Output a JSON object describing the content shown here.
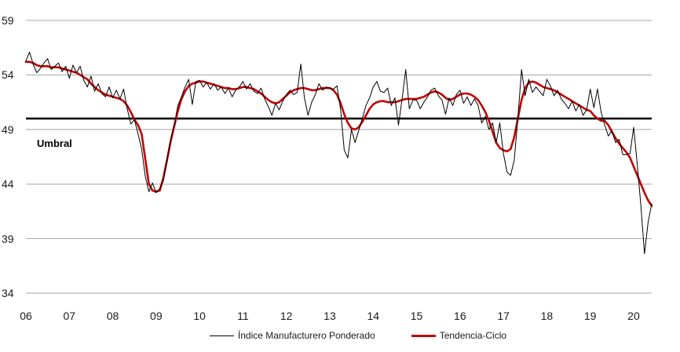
{
  "chart_data": {
    "type": "line",
    "title": "",
    "frequency": "monthly",
    "start": "2006-01",
    "end": "2020-06",
    "x_tick_labels": [
      "06",
      "07",
      "08",
      "09",
      "10",
      "11",
      "12",
      "13",
      "14",
      "15",
      "16",
      "17",
      "18",
      "19",
      "20"
    ],
    "y_ticks": [
      34,
      39,
      44,
      49,
      54,
      59
    ],
    "ylim": [
      34,
      59
    ],
    "grid": "horizontal-gray-lines",
    "legend_position": "bottom-center",
    "threshold": {
      "label": "Umbral",
      "value": 50,
      "color": "#000000"
    },
    "colors": {
      "index": "#000000",
      "trend": "#C00000",
      "gridline": "#A6A6A6"
    },
    "series": [
      {
        "name": "Índice Manufacturero Ponderado",
        "color": "#000000",
        "values": [
          55.3,
          56.1,
          55.0,
          54.2,
          54.6,
          55.1,
          55.5,
          54.5,
          54.8,
          55.1,
          54.3,
          54.8,
          53.7,
          54.9,
          54.2,
          54.8,
          53.5,
          52.9,
          53.9,
          52.5,
          53.2,
          52.3,
          52.0,
          52.9,
          51.9,
          52.6,
          51.8,
          52.7,
          50.9,
          49.5,
          49.9,
          48.6,
          47.2,
          44.7,
          43.3,
          44.1,
          43.2,
          43.6,
          44.3,
          46.2,
          48.1,
          49.4,
          51.2,
          52.0,
          52.9,
          53.6,
          51.3,
          53.4,
          53.5,
          52.9,
          53.3,
          52.7,
          53.2,
          52.6,
          52.9,
          52.3,
          52.8,
          52.0,
          52.6,
          52.9,
          53.4,
          52.7,
          53.2,
          52.5,
          52.3,
          52.8,
          51.8,
          51.1,
          50.3,
          51.4,
          50.8,
          51.6,
          52.2,
          52.6,
          52.2,
          52.4,
          55.0,
          51.9,
          50.3,
          51.5,
          52.2,
          53.2,
          52.6,
          52.9,
          52.8,
          52.7,
          53.0,
          50.8,
          47.1,
          46.4,
          49.0,
          47.8,
          48.9,
          50.0,
          51.2,
          51.9,
          52.9,
          53.4,
          52.5,
          52.4,
          52.8,
          51.2,
          51.9,
          49.4,
          51.8,
          54.5,
          50.9,
          51.7,
          51.7,
          50.9,
          51.5,
          52.0,
          52.6,
          52.8,
          52.1,
          51.7,
          50.4,
          51.9,
          51.2,
          52.2,
          52.6,
          51.4,
          52.0,
          51.2,
          51.8,
          51.2,
          49.6,
          50.2,
          49.0,
          49.6,
          47.8,
          49.6,
          46.8,
          45.1,
          44.8,
          46.2,
          50.0,
          54.5,
          52.1,
          53.6,
          52.4,
          52.9,
          52.5,
          52.1,
          53.6,
          53.0,
          52.1,
          52.6,
          51.8,
          51.4,
          50.9,
          51.6,
          50.7,
          51.3,
          50.3,
          50.8,
          52.7,
          51.0,
          52.7,
          50.6,
          49.4,
          48.4,
          48.9,
          47.8,
          48.1,
          46.7,
          46.7,
          46.8,
          49.2,
          45.8,
          42.0,
          37.6,
          40.5,
          42.2
        ]
      },
      {
        "name": "Tendencia-Ciclo",
        "color": "#C00000",
        "values": [
          55.2,
          55.2,
          55.1,
          54.9,
          54.8,
          54.8,
          54.8,
          54.7,
          54.7,
          54.7,
          54.6,
          54.5,
          54.4,
          54.3,
          54.2,
          54.0,
          53.8,
          53.6,
          53.2,
          52.9,
          52.6,
          52.4,
          52.2,
          52.1,
          52.0,
          51.9,
          51.8,
          51.6,
          51.2,
          50.6,
          49.9,
          49.4,
          48.6,
          46.3,
          44.0,
          43.4,
          43.3,
          43.4,
          44.6,
          46.2,
          47.9,
          49.3,
          50.7,
          51.8,
          52.5,
          53.0,
          53.2,
          53.3,
          53.4,
          53.4,
          53.3,
          53.2,
          53.1,
          53.0,
          52.9,
          52.8,
          52.8,
          52.7,
          52.7,
          52.8,
          52.9,
          52.9,
          52.8,
          52.7,
          52.5,
          52.3,
          52.0,
          51.7,
          51.5,
          51.4,
          51.5,
          51.8,
          52.1,
          52.4,
          52.6,
          52.7,
          52.8,
          52.8,
          52.7,
          52.6,
          52.6,
          52.7,
          52.8,
          52.8,
          52.8,
          52.6,
          52.2,
          51.4,
          50.4,
          49.6,
          49.1,
          49.0,
          49.2,
          49.7,
          50.3,
          50.9,
          51.3,
          51.5,
          51.6,
          51.6,
          51.5,
          51.5,
          51.5,
          51.6,
          51.7,
          51.8,
          51.8,
          51.8,
          51.8,
          51.9,
          52.0,
          52.2,
          52.4,
          52.5,
          52.4,
          52.2,
          51.9,
          51.7,
          51.8,
          52.0,
          52.2,
          52.3,
          52.3,
          52.2,
          52.0,
          51.7,
          51.2,
          50.6,
          49.8,
          48.8,
          47.8,
          47.3,
          47.1,
          47.0,
          47.2,
          48.3,
          50.0,
          51.7,
          52.8,
          53.3,
          53.4,
          53.3,
          53.1,
          52.9,
          52.8,
          52.7,
          52.6,
          52.4,
          52.2,
          52.0,
          51.8,
          51.6,
          51.4,
          51.2,
          51.0,
          50.8,
          50.7,
          50.3,
          50.0,
          49.8,
          49.8,
          49.4,
          48.8,
          48.2,
          47.7,
          47.3,
          46.9,
          46.4,
          45.6,
          44.8,
          44.0,
          43.2,
          42.5,
          42.0
        ]
      }
    ]
  },
  "legend": {
    "index_label": "Índice Manufacturero Ponderado",
    "trend_label": "Tendencia-Ciclo"
  },
  "threshold_label": "Umbral"
}
